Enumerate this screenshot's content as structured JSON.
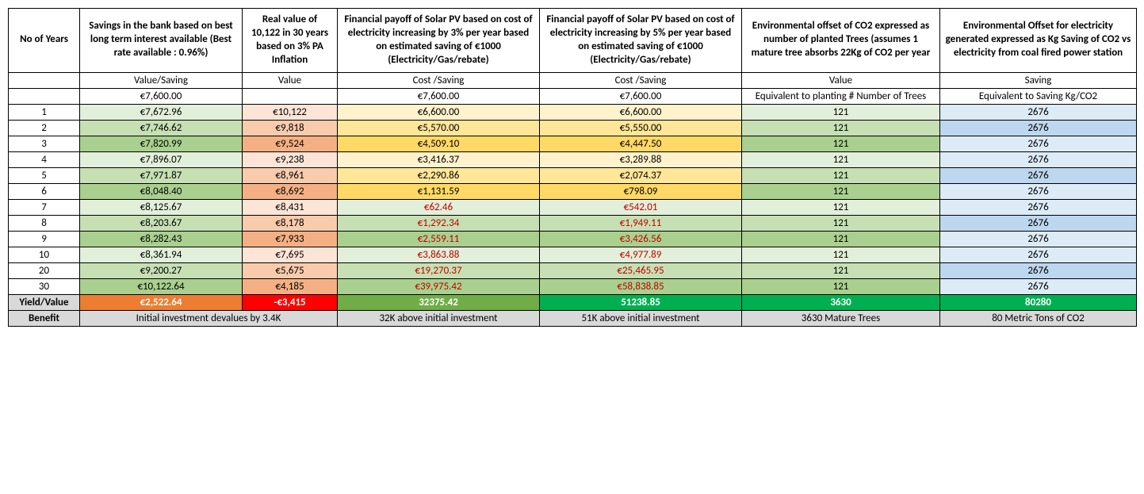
{
  "colors": {
    "green_light": "#e2efda",
    "green_mid": "#c6e0b4",
    "green_dark": "#a9d08e",
    "pink_light": "#fce4d6",
    "pink_mid": "#f8cbad",
    "pink_dark": "#f4b084",
    "yellow_light": "#fff2cc",
    "yellow_mid": "#ffe699",
    "yellow_dark": "#ffd966",
    "blue_light": "#ddebf7",
    "blue_mid": "#bdd7ee",
    "orange": "#ed7d31",
    "red": "#ff0000",
    "bright_green": "#70ad47",
    "darker_green": "#00b050",
    "grey": "#d9d9d9",
    "white_text": "#ffffff",
    "red_text": "#c00000"
  },
  "headers": {
    "years": "No of Years",
    "a": "Savings in the bank based on best long term interest available (Best  rate available : 0.96%)",
    "b": "Real value of 10,122 in 30 years based on 3% PA Inflation",
    "c": "Financial payoff of Solar PV based on cost of electricity increasing by 3% per year based on estimated saving of €1000 (Electricity/Gas/rebate)",
    "d": "Financial payoff of Solar PV based on cost of electricity increasing by 5% per year based on estimated saving of €1000 (Electricity/Gas/rebate)",
    "e": "Environmental offset of CO2 expressed as number of planted Trees (assumes 1 mature tree absorbs 22Kg of CO2 per year",
    "f": "Environmental Offset for electricity generated expressed as Kg Saving of CO2 vs electricity from coal fired power station"
  },
  "subheaders": {
    "a": "Value/Saving",
    "b": "Value",
    "c": "Cost /Saving",
    "d": "Cost /Saving",
    "e": "Value",
    "f": "Saving"
  },
  "initial": {
    "a": "€7,600.00",
    "b": "",
    "c": "€7,600.00",
    "d": "€7,600.00",
    "e": "Equivalent to planting # Number of Trees",
    "f": "Equivalent to Saving Kg/CO2"
  },
  "rows": [
    {
      "year": "1",
      "a": "€7,672.96",
      "b": "€10,122",
      "c": "€6,600.00",
      "d": "€6,600.00",
      "e": "121",
      "f": "2676",
      "shade": 0,
      "payoff": false
    },
    {
      "year": "2",
      "a": "€7,746.62",
      "b": "€9,818",
      "c": "€5,570.00",
      "d": "€5,550.00",
      "e": "121",
      "f": "2676",
      "shade": 1,
      "payoff": false
    },
    {
      "year": "3",
      "a": "€7,820.99",
      "b": "€9,524",
      "c": "€4,509.10",
      "d": "€4,447.50",
      "e": "121",
      "f": "2676",
      "shade": 2,
      "payoff": false
    },
    {
      "year": "4",
      "a": "€7,896.07",
      "b": "€9,238",
      "c": "€3,416.37",
      "d": "€3,289.88",
      "e": "121",
      "f": "2676",
      "shade": 0,
      "payoff": false
    },
    {
      "year": "5",
      "a": "€7,971.87",
      "b": "€8,961",
      "c": "€2,290.86",
      "d": "€2,074.37",
      "e": "121",
      "f": "2676",
      "shade": 1,
      "payoff": false
    },
    {
      "year": "6",
      "a": "€8,048.40",
      "b": "€8,692",
      "c": "€1,131.59",
      "d": "€798.09",
      "e": "121",
      "f": "2676",
      "shade": 2,
      "payoff": false
    },
    {
      "year": "7",
      "a": "€8,125.67",
      "b": "€8,431",
      "c": "€62.46",
      "d": "€542.01",
      "e": "121",
      "f": "2676",
      "shade": 0,
      "payoff": true
    },
    {
      "year": "8",
      "a": "€8,203.67",
      "b": "€8,178",
      "c": "€1,292.34",
      "d": "€1,949.11",
      "e": "121",
      "f": "2676",
      "shade": 1,
      "payoff": true
    },
    {
      "year": "9",
      "a": "€8,282.43",
      "b": "€7,933",
      "c": "€2,559.11",
      "d": "€3,426.56",
      "e": "121",
      "f": "2676",
      "shade": 2,
      "payoff": true
    },
    {
      "year": "10",
      "a": "€8,361.94",
      "b": "€7,695",
      "c": "€3,863.88",
      "d": "€4,977.89",
      "e": "121",
      "f": "2676",
      "shade": 0,
      "payoff": true
    },
    {
      "year": "20",
      "a": "€9,200.27",
      "b": "€5,675",
      "c": "€19,270.37",
      "d": "€25,465.95",
      "e": "121",
      "f": "2676",
      "shade": 1,
      "payoff": true
    },
    {
      "year": "30",
      "a": "€10,122.64",
      "b": "€4,185",
      "c": "€39,975.42",
      "d": "€58,838.85",
      "e": "121",
      "f": "2676",
      "shade": 2,
      "payoff": true
    }
  ],
  "yield_row": {
    "label": "Yield/Value",
    "a": "€2,522.64",
    "b": "-€3,415",
    "c": "32375.42",
    "d": "51238.85",
    "e": "3630",
    "f": "80280"
  },
  "benefit_row": {
    "label": "Benefit",
    "ab": "Initial investment devalues by 3.4K",
    "c": "32K above initial investment",
    "d": "51K above initial investment",
    "e": "3630 Mature Trees",
    "f": "80 Metric Tons of CO2"
  }
}
